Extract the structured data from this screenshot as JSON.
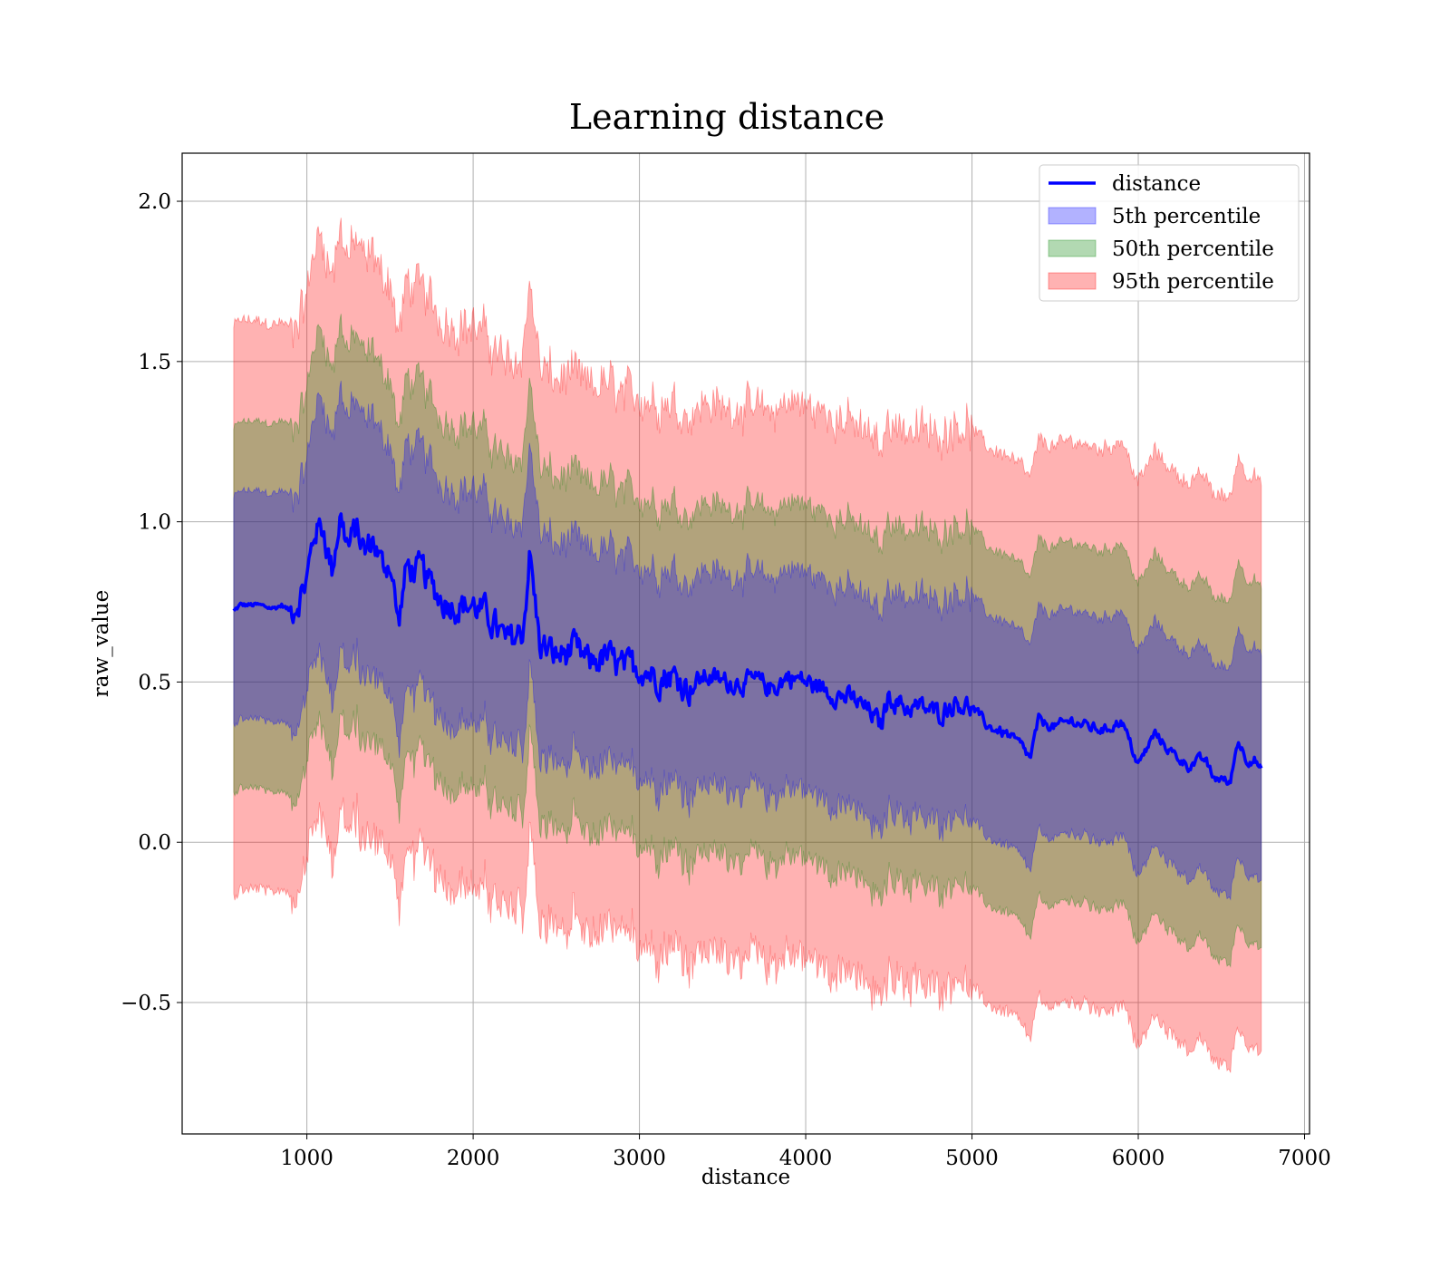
{
  "chart_data": {
    "type": "line",
    "title": "Learning distance",
    "xlabel": "distance",
    "ylabel": "raw_value",
    "xlim": [
      250,
      7030
    ],
    "ylim": [
      -0.91,
      2.15
    ],
    "xticks": [
      1000,
      2000,
      3000,
      4000,
      5000,
      6000,
      7000
    ],
    "xtick_labels": [
      "1000",
      "2000",
      "3000",
      "4000",
      "5000",
      "6000",
      "7000"
    ],
    "yticks": [
      -0.5,
      0.0,
      0.5,
      1.0,
      1.5,
      2.0
    ],
    "ytick_labels": [
      "−0.5",
      "0.0",
      "0.5",
      "1.0",
      "1.5",
      "2.0"
    ],
    "grid": true,
    "legend_position": "top-right",
    "x_range": [
      560,
      6740
    ],
    "series": [
      {
        "name": "distance",
        "kind": "line",
        "color": "#0000ff",
        "x": [
          560,
          600,
          700,
          800,
          850,
          900,
          950,
          1000,
          1050,
          1100,
          1150,
          1200,
          1250,
          1300,
          1350,
          1400,
          1450,
          1500,
          1550,
          1600,
          1700,
          1800,
          1900,
          2000,
          2100,
          2200,
          2300,
          2340,
          2400,
          2500,
          2600,
          2700,
          2800,
          2900,
          3000,
          3100,
          3200,
          3300,
          3400,
          3500,
          3600,
          3700,
          3800,
          3900,
          4000,
          4100,
          4200,
          4300,
          4400,
          4450,
          4500,
          4600,
          4700,
          4800,
          4900,
          5000,
          5100,
          5200,
          5300,
          5350,
          5400,
          5500,
          5600,
          5700,
          5800,
          5900,
          6000,
          6100,
          6200,
          6300,
          6400,
          6450,
          6500,
          6550,
          6600,
          6650,
          6700,
          6740
        ],
        "y": [
          0.72,
          0.74,
          0.74,
          0.73,
          0.74,
          0.72,
          0.76,
          0.82,
          0.98,
          0.98,
          0.85,
          1.02,
          0.92,
          0.98,
          0.9,
          0.95,
          0.86,
          0.88,
          0.68,
          0.86,
          0.84,
          0.76,
          0.74,
          0.74,
          0.7,
          0.62,
          0.66,
          0.9,
          0.62,
          0.58,
          0.6,
          0.56,
          0.58,
          0.54,
          0.55,
          0.52,
          0.52,
          0.48,
          0.52,
          0.5,
          0.5,
          0.5,
          0.48,
          0.52,
          0.5,
          0.48,
          0.46,
          0.44,
          0.4,
          0.36,
          0.46,
          0.42,
          0.42,
          0.4,
          0.44,
          0.42,
          0.36,
          0.34,
          0.3,
          0.26,
          0.38,
          0.36,
          0.38,
          0.36,
          0.35,
          0.38,
          0.24,
          0.34,
          0.28,
          0.24,
          0.26,
          0.2,
          0.2,
          0.18,
          0.32,
          0.26,
          0.26,
          0.22
        ]
      },
      {
        "name": "5th percentile",
        "kind": "band",
        "color": "#0000ff",
        "half_width_x": [
          560,
          1000,
          1100,
          2000,
          3000,
          4000,
          5000,
          6000,
          6740
        ],
        "half_width": [
          0.355,
          0.36,
          0.41,
          0.36,
          0.33,
          0.34,
          0.35,
          0.35,
          0.355
        ]
      },
      {
        "name": "50th percentile",
        "kind": "band",
        "color": "#008000",
        "half_width_x": [
          560,
          1000,
          1100,
          2000,
          3000,
          4000,
          5000,
          6000,
          6740
        ],
        "half_width": [
          0.57,
          0.58,
          0.62,
          0.56,
          0.54,
          0.55,
          0.56,
          0.56,
          0.565
        ]
      },
      {
        "name": "95th percentile",
        "kind": "band",
        "color": "#ff0000",
        "half_width_x": [
          560,
          1000,
          1100,
          2000,
          3000,
          4000,
          5000,
          6000,
          6740
        ],
        "half_width": [
          0.89,
          0.88,
          0.91,
          0.87,
          0.85,
          0.86,
          0.87,
          0.88,
          0.89
        ]
      }
    ]
  }
}
